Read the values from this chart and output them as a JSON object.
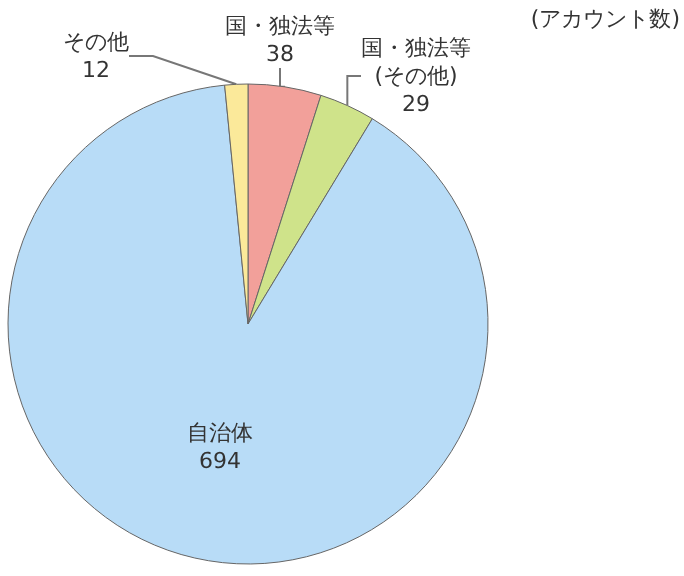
{
  "chart_data": {
    "type": "pie",
    "categories": [
      "国・独法等",
      "国・独法等\n(その他)",
      "自治体",
      "その他"
    ],
    "values": [
      38,
      29,
      694,
      12
    ],
    "colors": [
      "#f2a09a",
      "#cfe38a",
      "#b8dcf7",
      "#fbe99a"
    ],
    "data_labels": true,
    "annotations": [
      "(アカウント数)"
    ],
    "legend": false
  }
}
